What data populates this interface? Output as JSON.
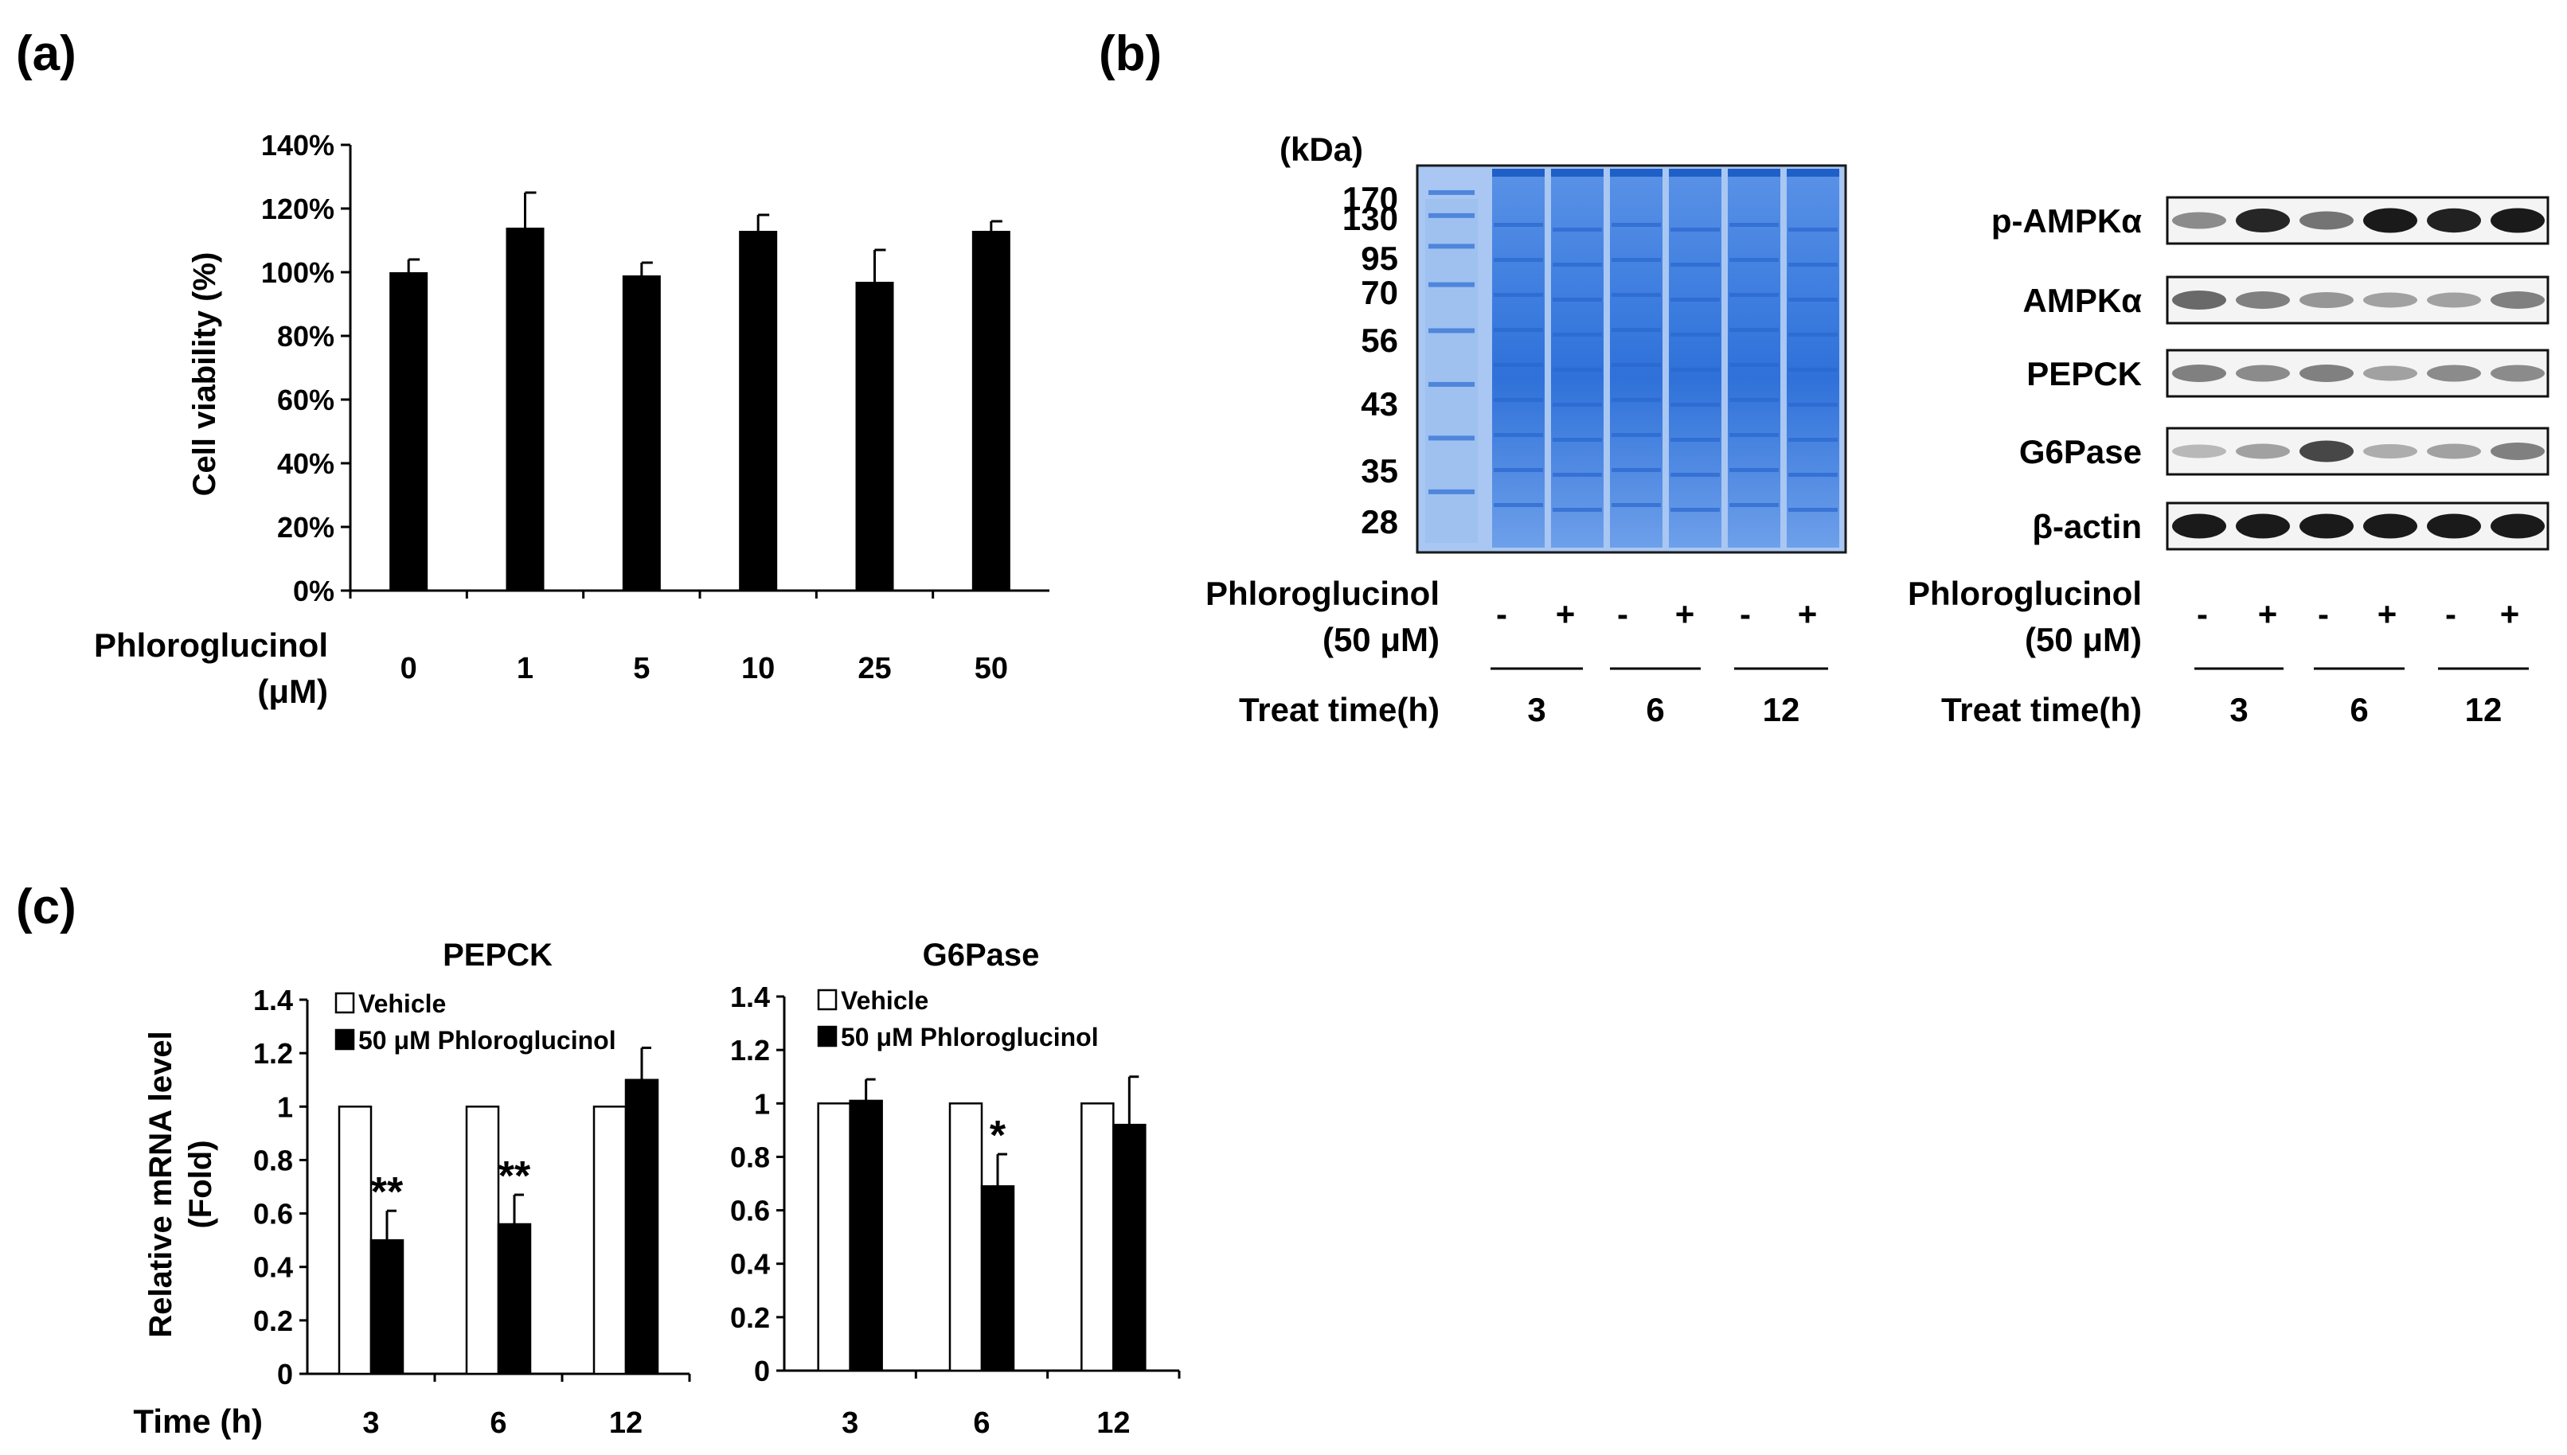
{
  "panels": {
    "a": "(a)",
    "b": "(b)",
    "c": "(c)"
  },
  "chart_data": [
    {
      "id": "a",
      "type": "bar",
      "title": "",
      "xlabel": "Phloroglucinol (μM)",
      "xlabel_lines": [
        "Phloroglucinol",
        "(μM)"
      ],
      "ylabel": "Cell viability (%)",
      "categories": [
        "0",
        "1",
        "5",
        "10",
        "25",
        "50"
      ],
      "values": [
        100,
        114,
        99,
        113,
        97,
        113
      ],
      "errors": [
        4,
        11,
        4,
        5,
        10,
        3
      ],
      "ylim": [
        0,
        140
      ],
      "yticks": [
        0,
        20,
        40,
        60,
        80,
        100,
        120,
        140
      ],
      "ytick_labels": [
        "0%",
        "20%",
        "40%",
        "60%",
        "80%",
        "100%",
        "120%",
        "140%"
      ],
      "colors": {
        "bar": "#000000"
      }
    },
    {
      "id": "c1",
      "type": "bar",
      "title": "PEPCK",
      "xlabel": "Time (h)",
      "ylabel": "Relative mRNA level (Fold)",
      "ylabel_lines": [
        "Relative mRNA level",
        "(Fold)"
      ],
      "categories": [
        "3",
        "6",
        "12"
      ],
      "series": [
        {
          "name": "Vehicle",
          "values": [
            1,
            1,
            1
          ],
          "errors": [
            0,
            0,
            0
          ],
          "color": "#ffffff"
        },
        {
          "name": "50 μM Phloroglucinol",
          "values": [
            0.5,
            0.56,
            1.1
          ],
          "errors": [
            0.11,
            0.11,
            0.12
          ],
          "color": "#000000"
        }
      ],
      "significance": [
        "**",
        "**",
        ""
      ],
      "ylim": [
        0,
        1.4
      ],
      "yticks": [
        0,
        0.2,
        0.4,
        0.6,
        0.8,
        1,
        1.2,
        1.4
      ],
      "ytick_labels": [
        "0",
        "0.2",
        "0.4",
        "0.6",
        "0.8",
        "1",
        "1.2",
        "1.4"
      ]
    },
    {
      "id": "c2",
      "type": "bar",
      "title": "G6Pase",
      "xlabel": "",
      "ylabel": "",
      "categories": [
        "3",
        "6",
        "12"
      ],
      "series": [
        {
          "name": "Vehicle",
          "values": [
            1,
            1,
            1
          ],
          "errors": [
            0,
            0,
            0
          ],
          "color": "#ffffff"
        },
        {
          "name": "50 μM Phloroglucinol",
          "values": [
            1.01,
            0.69,
            0.92
          ],
          "errors": [
            0.08,
            0.12,
            0.18
          ],
          "color": "#000000"
        }
      ],
      "significance": [
        "",
        "*",
        ""
      ],
      "ylim": [
        0,
        1.4
      ],
      "yticks": [
        0,
        0.2,
        0.4,
        0.6,
        0.8,
        1,
        1.2,
        1.4
      ],
      "ytick_labels": [
        "0",
        "0.2",
        "0.4",
        "0.6",
        "0.8",
        "1",
        "1.2",
        "1.4"
      ]
    }
  ],
  "gel": {
    "unit_label": "(kDa)",
    "markers": [
      "170",
      "130",
      "95",
      "70",
      "56",
      "43",
      "35",
      "28"
    ],
    "colors": {
      "stain": "#3f7ee0",
      "stain_light": "#9cc0f0"
    }
  },
  "blot": {
    "proteins": [
      "p-AMPKα",
      "AMPKα",
      "PEPCK",
      "G6Pase",
      "β-actin"
    ],
    "band_intensity": [
      [
        0.45,
        0.9,
        0.55,
        0.95,
        0.92,
        0.95
      ],
      [
        0.6,
        0.5,
        0.4,
        0.35,
        0.35,
        0.5
      ],
      [
        0.5,
        0.45,
        0.5,
        0.35,
        0.45,
        0.45
      ],
      [
        0.25,
        0.35,
        0.75,
        0.3,
        0.35,
        0.5
      ],
      [
        0.95,
        0.95,
        0.95,
        0.95,
        0.95,
        0.95
      ]
    ]
  },
  "treatment": {
    "label_lines": [
      "Phloroglucinol",
      "(50 μM)"
    ],
    "signs": [
      "-",
      "+",
      "-",
      "+",
      "-",
      "+"
    ],
    "time_label": "Treat time(h)",
    "times": [
      "3",
      "6",
      "12"
    ]
  }
}
